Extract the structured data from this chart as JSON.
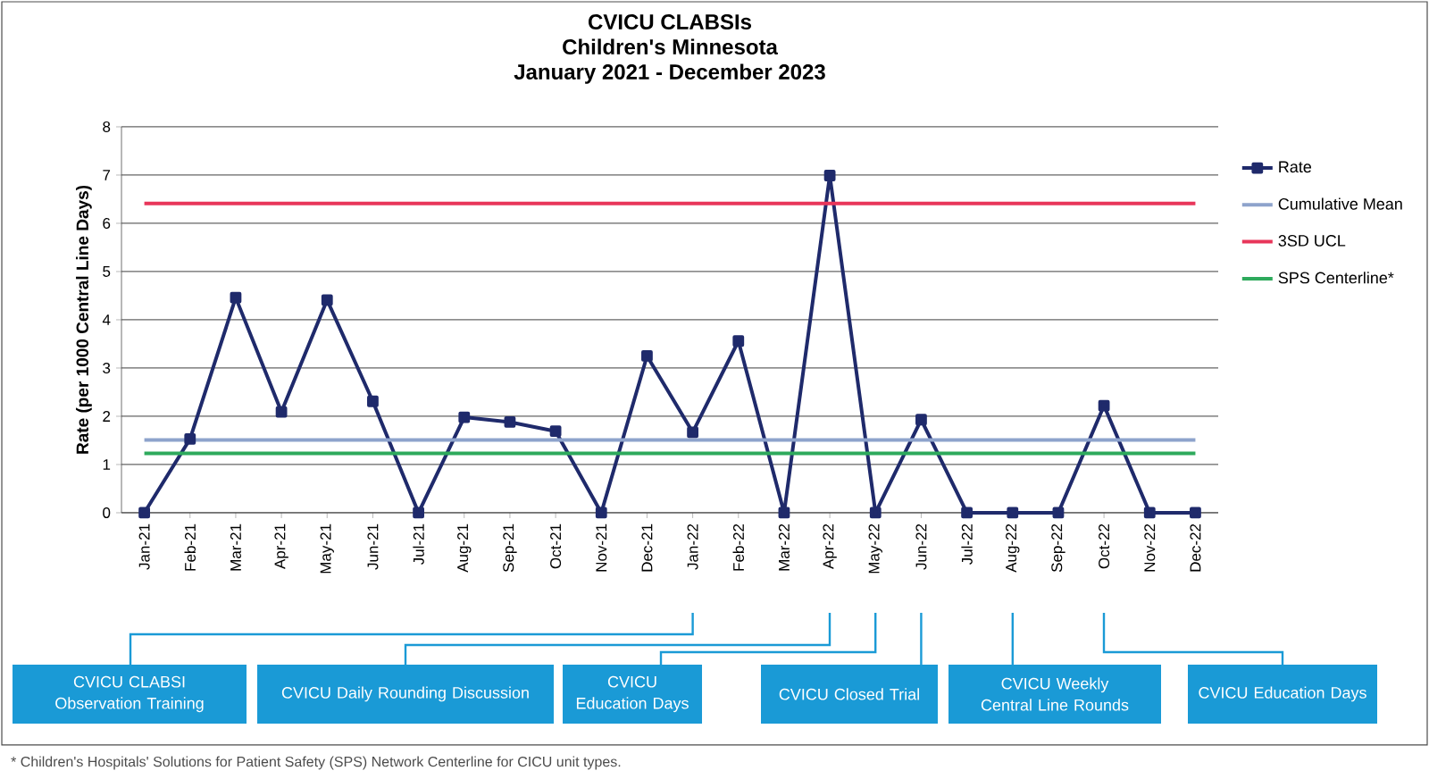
{
  "chart_data": {
    "type": "line",
    "title": "CVICU CLABSIs",
    "subtitle": "Children's Minnesota",
    "ylabel": "Rate (per 1000 Central Line Days)",
    "categories": [
      "Jan-21",
      "Feb-21",
      "Mar-21",
      "Apr-21",
      "May-21",
      "Jun-21",
      "Jul-21",
      "Aug-21",
      "Sep-21",
      "Oct-21",
      "Nov-21",
      "Dec-21",
      "Jan-22",
      "Feb-22",
      "Mar-22",
      "Apr-22",
      "May-22",
      "Jun-22",
      "Jul-22",
      "Aug-22",
      "Sep-22",
      "Oct-22",
      "Nov-22",
      "Dec-22"
    ],
    "series": [
      {
        "name": "Rate",
        "color": "#1f2a6b",
        "values": [
          0,
          1.53,
          4.46,
          2.09,
          4.41,
          2.31,
          0,
          1.98,
          1.88,
          1.69,
          0,
          3.25,
          1.67,
          3.56,
          0,
          6.99,
          0,
          1.93,
          0,
          0,
          0,
          2.22,
          0,
          0
        ]
      }
    ],
    "ylim": [
      0,
      8
    ],
    "yticks": [
      0,
      1,
      2,
      3,
      4,
      5,
      6,
      7,
      8
    ],
    "grid": "y",
    "legend": "right",
    "marker": "square",
    "line_style": "solid",
    "ref_lines": [
      {
        "axis": "y",
        "value": 1.51,
        "label": "Cumulative Mean",
        "color": "#8ea3cc"
      },
      {
        "axis": "y",
        "value": 6.41,
        "label": "3SD UCL",
        "color": "#e8365a"
      },
      {
        "axis": "y",
        "value": 1.23,
        "label": "SPS Centerline*",
        "color": "#2eaa5c"
      }
    ],
    "annotations": [
      "January 2021 - December 2023",
      "CVICU CLABSI Observation Training",
      "CVICU Daily Rounding Discussion",
      "CVICU Education Days",
      "CVICU Closed Trial",
      "CVICU Weekly Central Line Rounds",
      "CVICU Education Days",
      "* Children's Hospitals' Solutions for Patient Safety (SPS) Network Centerline for CICU unit types."
    ]
  }
}
